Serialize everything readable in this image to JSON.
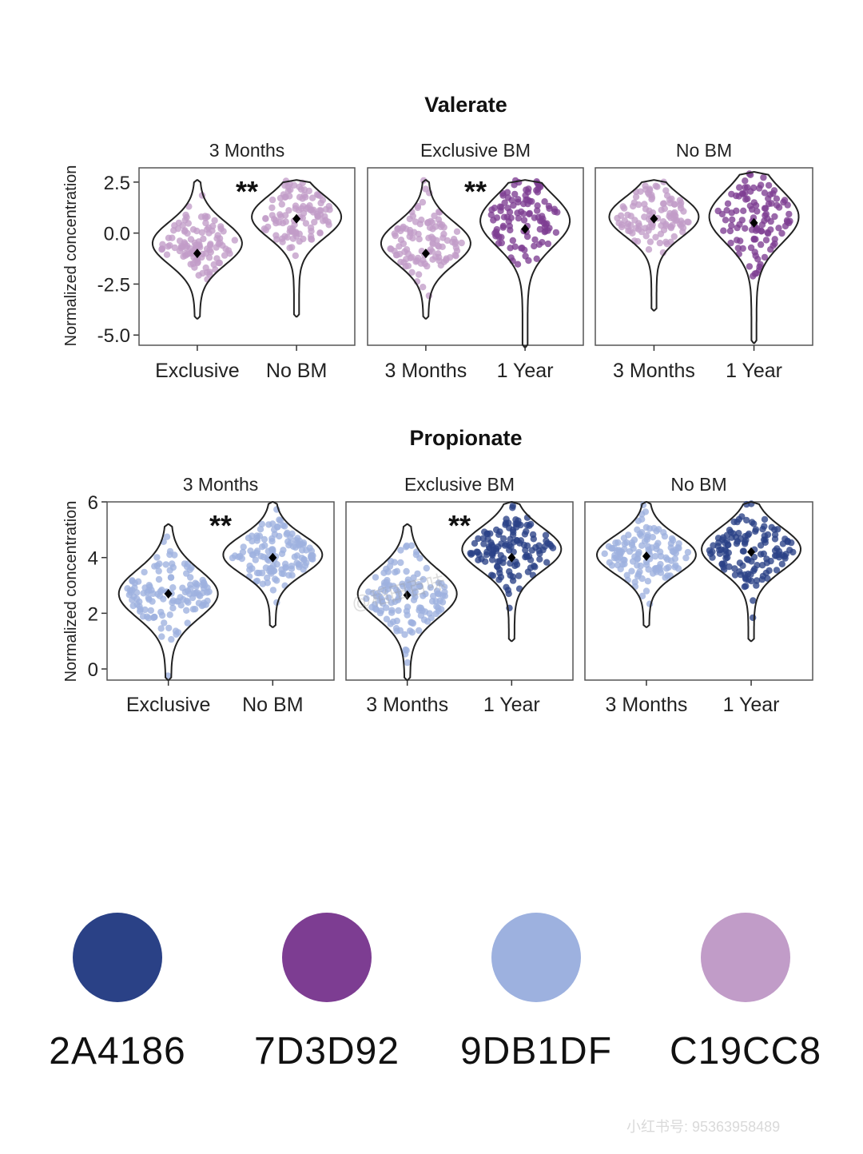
{
  "watermark": "@稻田百味",
  "footer_id": "小红书号: 95363958489",
  "colors": {
    "light_blue": "#9DB1DF",
    "dark_blue": "#2A4186",
    "light_purple": "#C19CC8",
    "dark_purple": "#7D3D92"
  },
  "palette": [
    {
      "hex": "#2A4186",
      "code": "2A4186"
    },
    {
      "hex": "#7D3D92",
      "code": "7D3D92"
    },
    {
      "hex": "#9DB1DF",
      "code": "9DB1DF"
    },
    {
      "hex": "#C19CC8",
      "code": "C19CC8"
    }
  ],
  "chart_data": [
    {
      "type": "violin",
      "title": "Valerate",
      "ylabel": "Normalized concentration",
      "ylim": [
        -5.5,
        3.2
      ],
      "yticks": [
        2.5,
        0.0,
        -2.5,
        -5.0
      ],
      "ytick_labels": [
        "2.5",
        "0.0",
        "-2.5",
        "-5.0"
      ],
      "panels": [
        {
          "facet": "3 Months",
          "significance": "**",
          "groups": [
            {
              "label": "Exclusive",
              "mean": -1.0,
              "min": -4.2,
              "max": 2.6,
              "peak": -0.5,
              "color_key": "light_purple"
            },
            {
              "label": "No BM",
              "mean": 0.7,
              "min": -4.1,
              "max": 2.6,
              "peak": 0.8,
              "color_key": "light_purple"
            }
          ]
        },
        {
          "facet": "Exclusive BM",
          "significance": "**",
          "groups": [
            {
              "label": "3 Months",
              "mean": -1.0,
              "min": -4.2,
              "max": 2.6,
              "peak": -0.5,
              "color_key": "light_purple"
            },
            {
              "label": "1 Year",
              "mean": 0.2,
              "min": -5.6,
              "max": 2.6,
              "peak": 0.6,
              "color_key": "dark_purple"
            }
          ]
        },
        {
          "facet": "No BM",
          "significance": "",
          "groups": [
            {
              "label": "3 Months",
              "mean": 0.7,
              "min": -3.8,
              "max": 2.6,
              "peak": 0.8,
              "color_key": "light_purple"
            },
            {
              "label": "1 Year",
              "mean": 0.5,
              "min": -5.4,
              "max": 3.0,
              "peak": 0.8,
              "color_key": "dark_purple"
            }
          ]
        }
      ]
    },
    {
      "type": "violin",
      "title": "Propionate",
      "ylabel": "Normalized concentration",
      "ylim": [
        -0.4,
        6.0
      ],
      "yticks": [
        6,
        4,
        2,
        0
      ],
      "ytick_labels": [
        "6",
        "4",
        "2",
        "0"
      ],
      "panels": [
        {
          "facet": "3 Months",
          "significance": "**",
          "groups": [
            {
              "label": "Exclusive",
              "mean": 2.7,
              "min": -0.4,
              "max": 5.2,
              "peak": 2.7,
              "color_key": "light_blue"
            },
            {
              "label": "No BM",
              "mean": 4.0,
              "min": 1.5,
              "max": 6.0,
              "peak": 4.1,
              "color_key": "light_blue"
            }
          ]
        },
        {
          "facet": "Exclusive BM",
          "significance": "**",
          "groups": [
            {
              "label": "3 Months",
              "mean": 2.65,
              "min": -0.4,
              "max": 5.2,
              "peak": 2.7,
              "color_key": "light_blue"
            },
            {
              "label": "1 Year",
              "mean": 4.0,
              "min": 1.0,
              "max": 6.0,
              "peak": 4.3,
              "color_key": "dark_blue"
            }
          ]
        },
        {
          "facet": "No BM",
          "significance": "",
          "groups": [
            {
              "label": "3 Months",
              "mean": 4.05,
              "min": 1.5,
              "max": 6.0,
              "peak": 4.1,
              "color_key": "light_blue"
            },
            {
              "label": "1 Year",
              "mean": 4.2,
              "min": 1.0,
              "max": 6.0,
              "peak": 4.3,
              "color_key": "dark_blue"
            }
          ]
        }
      ]
    }
  ]
}
